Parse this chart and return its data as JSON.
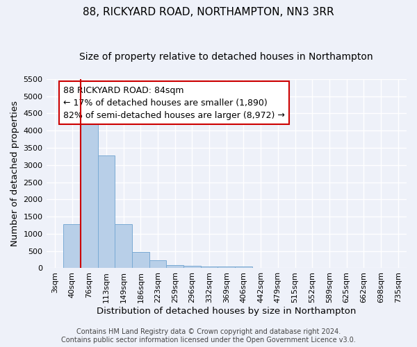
{
  "title": "88, RICKYARD ROAD, NORTHAMPTON, NN3 3RR",
  "subtitle": "Size of property relative to detached houses in Northampton",
  "xlabel": "Distribution of detached houses by size in Northampton",
  "ylabel": "Number of detached properties",
  "categories": [
    "3sqm",
    "40sqm",
    "76sqm",
    "113sqm",
    "149sqm",
    "186sqm",
    "223sqm",
    "259sqm",
    "296sqm",
    "332sqm",
    "369sqm",
    "406sqm",
    "442sqm",
    "479sqm",
    "515sqm",
    "552sqm",
    "589sqm",
    "625sqm",
    "662sqm",
    "698sqm",
    "735sqm"
  ],
  "values": [
    0,
    1280,
    4350,
    3280,
    1280,
    480,
    235,
    100,
    75,
    50,
    50,
    50,
    0,
    0,
    0,
    0,
    0,
    0,
    0,
    0,
    0
  ],
  "bar_color": "#b8cfe8",
  "bar_edge_color": "#7aaad4",
  "property_line_color": "#cc0000",
  "property_line_xindex": 2,
  "ylim": [
    0,
    5500
  ],
  "yticks": [
    0,
    500,
    1000,
    1500,
    2000,
    2500,
    3000,
    3500,
    4000,
    4500,
    5000,
    5500
  ],
  "annotation_line1": "88 RICKYARD ROAD: 84sqm",
  "annotation_line2": "← 17% of detached houses are smaller (1,890)",
  "annotation_line3": "82% of semi-detached houses are larger (8,972) →",
  "annotation_box_color": "#ffffff",
  "annotation_box_edge_color": "#cc0000",
  "footer_line1": "Contains HM Land Registry data © Crown copyright and database right 2024.",
  "footer_line2": "Contains public sector information licensed under the Open Government Licence v3.0.",
  "background_color": "#eef1f9",
  "grid_color": "#ffffff",
  "title_fontsize": 11,
  "subtitle_fontsize": 10,
  "axis_label_fontsize": 9.5,
  "tick_fontsize": 8,
  "annotation_fontsize": 9,
  "footer_fontsize": 7
}
